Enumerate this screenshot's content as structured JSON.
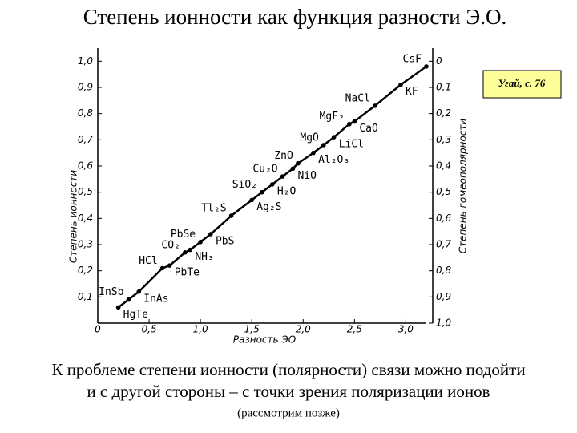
{
  "chart_data": {
    "type": "line",
    "title": "Степень ионности как функция разности Э.О.",
    "x_label": "Разность ЭО",
    "y_label": "Степень ионности",
    "y2_label": "Степень гомеополярности",
    "reference": "Угай, с. 76",
    "color": "#000000",
    "x": [
      0.2,
      0.3,
      0.4,
      0.63,
      0.7,
      0.85,
      0.9,
      1.0,
      1.1,
      1.3,
      1.5,
      1.6,
      1.7,
      1.8,
      1.9,
      1.95,
      2.1,
      2.2,
      2.3,
      2.45,
      2.5,
      2.7,
      2.95,
      3.2
    ],
    "values": [
      0.06,
      0.09,
      0.12,
      0.21,
      0.22,
      0.27,
      0.28,
      0.31,
      0.34,
      0.41,
      0.47,
      0.5,
      0.53,
      0.56,
      0.59,
      0.61,
      0.65,
      0.68,
      0.71,
      0.76,
      0.77,
      0.83,
      0.91,
      0.98
    ],
    "point_labels": [
      "HgTe",
      "InSb",
      "InAs",
      "HCl",
      "PbTe",
      "CO₂",
      "NH₃",
      "PbSe",
      "PbS",
      "Tl₂S",
      "Ag₂S",
      "SiO₂",
      "H₂O",
      "Cu₂O",
      "NiO",
      "ZnO",
      "Al₂O₃",
      "MgO",
      "LiCl",
      "MgF₂",
      "CaO",
      "NaCl",
      "KF",
      "CsF"
    ],
    "xlim": [
      0,
      3.2
    ],
    "ylim": [
      0,
      1.05
    ],
    "y2lim": [
      1.0,
      -0.05
    ],
    "xticks": [
      {
        "value": 0,
        "label": "0"
      },
      {
        "value": 0.5,
        "label": "0,5"
      },
      {
        "value": 1.0,
        "label": "1,0"
      },
      {
        "value": 1.5,
        "label": "1,5"
      },
      {
        "value": 2.0,
        "label": "2,0"
      },
      {
        "value": 2.5,
        "label": "2,5"
      },
      {
        "value": 3.0,
        "label": "3,0"
      }
    ],
    "yticks": [
      {
        "value": 0.1,
        "label": "0,1"
      },
      {
        "value": 0.2,
        "label": "0,2"
      },
      {
        "value": 0.3,
        "label": "0,3"
      },
      {
        "value": 0.4,
        "label": "0,4"
      },
      {
        "value": 0.5,
        "label": "0,5"
      },
      {
        "value": 0.6,
        "label": "0,6"
      },
      {
        "value": 0.7,
        "label": "0,7"
      },
      {
        "value": 0.8,
        "label": "0,8"
      },
      {
        "value": 0.9,
        "label": "0,9"
      },
      {
        "value": 1.0,
        "label": "1,0"
      }
    ],
    "y2ticks": [
      0,
      {
        "value": 0.1,
        "label": "0,1"
      },
      {
        "value": 0.2,
        "label": "0,2"
      },
      {
        "value": 0.3,
        "label": "0,3"
      },
      {
        "value": 0.4,
        "label": "0,4"
      },
      {
        "value": 0.5,
        "label": "0,5"
      },
      {
        "value": 0.6,
        "label": "0,6"
      },
      {
        "value": 0.7,
        "label": "0,7"
      },
      {
        "value": 0.8,
        "label": "0,8"
      },
      {
        "value": 0.9,
        "label": "0,9"
      },
      {
        "value": 1.0,
        "label": "1,0"
      }
    ],
    "caption": [
      "К проблеме степени ионности (полярности) связи можно подойти",
      "и с другой стороны – с точки зрения поляризации ионов",
      "(рассмотрим позже)"
    ]
  }
}
